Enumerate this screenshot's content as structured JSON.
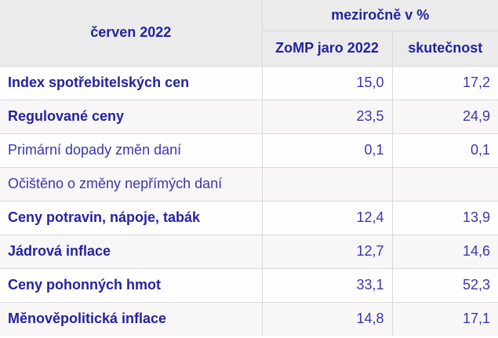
{
  "colors": {
    "header_bg": "#ebebeb",
    "row_bg": "#fefefe",
    "row_alt_bg": "#f8f6f6",
    "border": "#d9d9d9",
    "text_bold_navy": "#26239f",
    "text_regular_navy": "#3b38b0"
  },
  "chart_data": {
    "type": "table",
    "title": "červen 2022",
    "group_header": "meziročně v %",
    "columns": [
      "ZoMP jaro 2022",
      "skutečnost"
    ],
    "rows": [
      {
        "label": "Index spotřebitelských cen",
        "bold": true,
        "values": [
          "15,0",
          "17,2"
        ],
        "values_numeric": [
          15.0,
          17.2
        ]
      },
      {
        "label": "Regulované ceny",
        "bold": true,
        "values": [
          "23,5",
          "24,9"
        ],
        "values_numeric": [
          23.5,
          24.9
        ]
      },
      {
        "label": "Primární dopady změn daní",
        "bold": false,
        "values": [
          "0,1",
          "0,1"
        ],
        "values_numeric": [
          0.1,
          0.1
        ]
      },
      {
        "label": "Očištěno o změny nepřímých daní",
        "bold": false,
        "values": [
          "",
          ""
        ],
        "values_numeric": [
          null,
          null
        ]
      },
      {
        "label": "Ceny potravin, nápoje, tabák",
        "bold": true,
        "values": [
          "12,4",
          "13,9"
        ],
        "values_numeric": [
          12.4,
          13.9
        ]
      },
      {
        "label": "Jádrová inflace",
        "bold": true,
        "values": [
          "12,7",
          "14,6"
        ],
        "values_numeric": [
          12.7,
          14.6
        ]
      },
      {
        "label": "Ceny pohonných hmot",
        "bold": true,
        "values": [
          "33,1",
          "52,3"
        ],
        "values_numeric": [
          33.1,
          52.3
        ]
      },
      {
        "label": "Měnověpolitická inflace",
        "bold": true,
        "values": [
          "14,8",
          "17,1"
        ],
        "values_numeric": [
          14.8,
          17.1
        ]
      }
    ],
    "layout_hints": {
      "decimal_separator": ",",
      "unit": "%",
      "corner_cell_spans_two_header_rows": true,
      "group_header_spans_two_value_columns": true,
      "alternating_row_shading": true
    }
  }
}
